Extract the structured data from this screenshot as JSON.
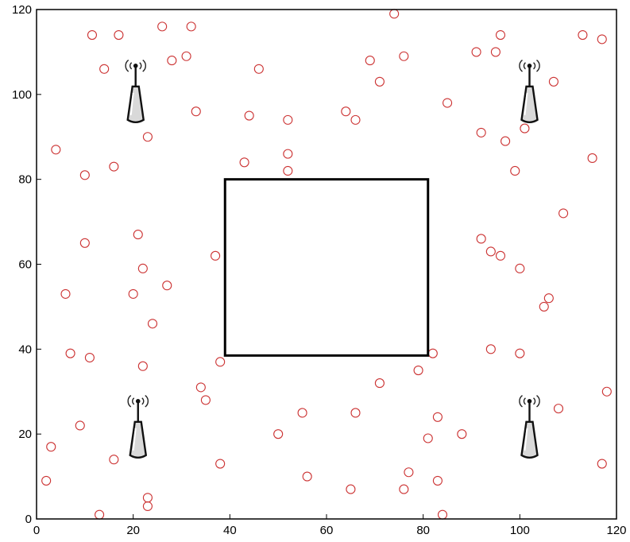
{
  "chart_data": {
    "type": "scatter",
    "title": "",
    "xlabel": "",
    "ylabel": "",
    "xlim": [
      0,
      120
    ],
    "ylim": [
      0,
      120
    ],
    "xticks": [
      "0",
      "20",
      "40",
      "60",
      "80",
      "100",
      "120"
    ],
    "yticks": [
      "0",
      "20",
      "40",
      "60",
      "80",
      "100",
      "120"
    ],
    "grid": false,
    "marker_color": "#cc3333",
    "marker": "open-circle",
    "points": [
      [
        11.5,
        114
      ],
      [
        17,
        114
      ],
      [
        26,
        116
      ],
      [
        32,
        116
      ],
      [
        28,
        108
      ],
      [
        31,
        109
      ],
      [
        14,
        106
      ],
      [
        74,
        119
      ],
      [
        76,
        109
      ],
      [
        69,
        108
      ],
      [
        71,
        103
      ],
      [
        46,
        106
      ],
      [
        33,
        96
      ],
      [
        44,
        95
      ],
      [
        52,
        94
      ],
      [
        64,
        96
      ],
      [
        66,
        94
      ],
      [
        85,
        98
      ],
      [
        91,
        110
      ],
      [
        95,
        110
      ],
      [
        96,
        114
      ],
      [
        113,
        114
      ],
      [
        117,
        113
      ],
      [
        107,
        103
      ],
      [
        101,
        92
      ],
      [
        92,
        91
      ],
      [
        97,
        89
      ],
      [
        99,
        82
      ],
      [
        115,
        85
      ],
      [
        109,
        72
      ],
      [
        4,
        87
      ],
      [
        10,
        81
      ],
      [
        16,
        83
      ],
      [
        23,
        90
      ],
      [
        43,
        84
      ],
      [
        52,
        86
      ],
      [
        52,
        82
      ],
      [
        10,
        65
      ],
      [
        21,
        67
      ],
      [
        37,
        62
      ],
      [
        22,
        59
      ],
      [
        27,
        55
      ],
      [
        6,
        53
      ],
      [
        20,
        53
      ],
      [
        24,
        46
      ],
      [
        92,
        66
      ],
      [
        94,
        63
      ],
      [
        96,
        62
      ],
      [
        100,
        59
      ],
      [
        106,
        52
      ],
      [
        105,
        50
      ],
      [
        7,
        39
      ],
      [
        11,
        38
      ],
      [
        22,
        36
      ],
      [
        38,
        37
      ],
      [
        82,
        39
      ],
      [
        79,
        35
      ],
      [
        71,
        32
      ],
      [
        94,
        40
      ],
      [
        100,
        39
      ],
      [
        34,
        31
      ],
      [
        35,
        28
      ],
      [
        55,
        25
      ],
      [
        66,
        25
      ],
      [
        83,
        24
      ],
      [
        88,
        20
      ],
      [
        81,
        19
      ],
      [
        108,
        26
      ],
      [
        118,
        30
      ],
      [
        9,
        22
      ],
      [
        3,
        17
      ],
      [
        50,
        20
      ],
      [
        16,
        14
      ],
      [
        38,
        13
      ],
      [
        56,
        10
      ],
      [
        77,
        11
      ],
      [
        2,
        9
      ],
      [
        65,
        7
      ],
      [
        76,
        7
      ],
      [
        83,
        9
      ],
      [
        23,
        5
      ],
      [
        23,
        3
      ],
      [
        13,
        1
      ],
      [
        84,
        1
      ],
      [
        117,
        13
      ]
    ],
    "towers": [
      {
        "icon": "antenna-tower-icon",
        "x": 20.5,
        "y": 103
      },
      {
        "icon": "antenna-tower-icon",
        "x": 102,
        "y": 103
      },
      {
        "icon": "antenna-tower-icon",
        "x": 21,
        "y": 24
      },
      {
        "icon": "antenna-tower-icon",
        "x": 102,
        "y": 24
      }
    ],
    "rectangle": {
      "x0": 39,
      "y0": 38.5,
      "x1": 81,
      "y1": 80
    }
  }
}
